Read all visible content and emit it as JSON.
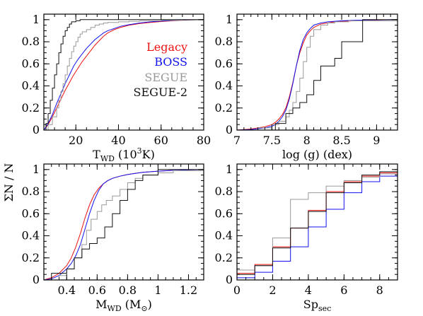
{
  "colors": {
    "legacy": "#ee1111",
    "boss": "#1111ee",
    "segue": "#999999",
    "segue2": "#111111"
  },
  "shared_ylabel": "ΣN / N",
  "chart_data": [
    {
      "id": "teff",
      "type": "line",
      "xlabel_main": "T",
      "xlabel_sub": "WD",
      "xlabel_unit_pre": " (10",
      "xlabel_unit_sup": "3",
      "xlabel_unit_post": "K)",
      "xlim": [
        5,
        80
      ],
      "ylim": [
        0,
        1.05
      ],
      "xticks": [
        20,
        40,
        60,
        80
      ],
      "xminor": 5,
      "yticks": [
        0,
        0.2,
        0.4,
        0.6,
        0.8,
        1
      ],
      "yminor": 0.05,
      "legend": [
        {
          "key": "legacy",
          "label": "Legacy"
        },
        {
          "key": "boss",
          "label": "BOSS"
        },
        {
          "key": "segue",
          "label": "SEGUE"
        },
        {
          "key": "segue2",
          "label": "SEGUE-2"
        }
      ],
      "series": [
        {
          "key": "legacy",
          "step": false,
          "x": [
            5,
            7,
            9,
            11,
            13,
            15,
            17,
            19,
            21,
            23,
            25,
            27,
            29,
            31,
            33,
            35,
            38,
            41,
            45,
            50,
            55,
            60,
            65,
            70,
            75,
            80
          ],
          "y": [
            0,
            0.05,
            0.12,
            0.2,
            0.28,
            0.36,
            0.43,
            0.5,
            0.56,
            0.62,
            0.67,
            0.72,
            0.77,
            0.81,
            0.85,
            0.88,
            0.91,
            0.93,
            0.95,
            0.965,
            0.975,
            0.983,
            0.99,
            0.995,
            0.998,
            1
          ]
        },
        {
          "key": "boss",
          "step": false,
          "x": [
            5,
            7,
            9,
            11,
            13,
            15,
            17,
            19,
            21,
            23,
            25,
            27,
            29,
            31,
            33,
            35,
            38,
            41,
            45,
            50,
            55,
            60,
            65,
            70,
            75,
            80
          ],
          "y": [
            0,
            0.06,
            0.14,
            0.24,
            0.33,
            0.42,
            0.5,
            0.58,
            0.64,
            0.69,
            0.74,
            0.78,
            0.82,
            0.85,
            0.88,
            0.9,
            0.92,
            0.94,
            0.955,
            0.97,
            0.98,
            0.987,
            0.992,
            0.996,
            0.998,
            1
          ]
        },
        {
          "key": "segue",
          "step": true,
          "x": [
            5,
            7,
            9,
            11,
            12,
            13,
            14,
            15,
            16,
            17,
            18,
            19,
            20,
            21,
            22,
            23,
            25,
            27,
            29,
            31,
            33,
            35,
            40,
            45,
            50,
            60,
            70,
            80
          ],
          "y": [
            0,
            0.05,
            0.12,
            0.2,
            0.27,
            0.35,
            0.42,
            0.5,
            0.58,
            0.65,
            0.71,
            0.76,
            0.8,
            0.84,
            0.87,
            0.89,
            0.91,
            0.93,
            0.95,
            0.96,
            0.97,
            0.975,
            0.98,
            0.985,
            0.99,
            0.995,
            0.998,
            1
          ]
        },
        {
          "key": "segue2",
          "step": true,
          "x": [
            5,
            6,
            7,
            8,
            9,
            10,
            11,
            12,
            13,
            14,
            15,
            16,
            17,
            18,
            20,
            22,
            25,
            30,
            35,
            80
          ],
          "y": [
            0,
            0.06,
            0.15,
            0.27,
            0.38,
            0.5,
            0.6,
            0.7,
            0.78,
            0.85,
            0.9,
            0.93,
            0.96,
            0.98,
            0.99,
            1,
            1,
            1,
            1,
            1
          ]
        }
      ]
    },
    {
      "id": "logg",
      "type": "line",
      "xlabel_main": "log (g) (dex)",
      "xlim": [
        7,
        9.3
      ],
      "ylim": [
        0,
        1.05
      ],
      "xticks": [
        7,
        7.5,
        8,
        8.5,
        9
      ],
      "xminor": 0.1,
      "yticks": [
        0,
        0.2,
        0.4,
        0.6,
        0.8,
        1
      ],
      "yminor": 0.05,
      "series": [
        {
          "key": "legacy",
          "step": false,
          "x": [
            7,
            7.2,
            7.4,
            7.5,
            7.55,
            7.6,
            7.65,
            7.7,
            7.75,
            7.8,
            7.85,
            7.9,
            7.95,
            8,
            8.05,
            8.1,
            8.2,
            8.3,
            8.4,
            8.5,
            8.7,
            9,
            9.3
          ],
          "y": [
            0,
            0.01,
            0.03,
            0.05,
            0.07,
            0.1,
            0.14,
            0.2,
            0.3,
            0.43,
            0.58,
            0.7,
            0.79,
            0.86,
            0.9,
            0.93,
            0.96,
            0.97,
            0.98,
            0.985,
            0.99,
            0.996,
            1
          ]
        },
        {
          "key": "boss",
          "step": false,
          "x": [
            7,
            7.2,
            7.4,
            7.5,
            7.55,
            7.6,
            7.65,
            7.7,
            7.75,
            7.8,
            7.85,
            7.9,
            7.95,
            8,
            8.05,
            8.1,
            8.2,
            8.3,
            8.4,
            8.5,
            8.7,
            9,
            9.3
          ],
          "y": [
            0,
            0.005,
            0.02,
            0.035,
            0.05,
            0.08,
            0.12,
            0.18,
            0.28,
            0.42,
            0.58,
            0.72,
            0.82,
            0.88,
            0.92,
            0.95,
            0.97,
            0.98,
            0.985,
            0.99,
            0.995,
            0.998,
            1
          ]
        },
        {
          "key": "segue",
          "step": true,
          "x": [
            7,
            7.3,
            7.5,
            7.6,
            7.7,
            7.75,
            7.8,
            7.85,
            7.9,
            7.95,
            8,
            8.05,
            8.1,
            8.2,
            8.3,
            8.4,
            8.6,
            9.3
          ],
          "y": [
            0,
            0.02,
            0.05,
            0.08,
            0.12,
            0.18,
            0.25,
            0.35,
            0.47,
            0.62,
            0.75,
            0.85,
            0.91,
            0.95,
            0.97,
            0.98,
            0.99,
            1
          ]
        },
        {
          "key": "segue2",
          "step": true,
          "x": [
            7,
            7.55,
            7.7,
            7.8,
            7.9,
            8,
            8.1,
            8.2,
            8.4,
            8.5,
            8.8,
            9.3
          ],
          "y": [
            0,
            0.06,
            0.15,
            0.2,
            0.25,
            0.32,
            0.45,
            0.58,
            0.65,
            0.8,
            1,
            1
          ]
        }
      ]
    },
    {
      "id": "mass",
      "type": "line",
      "xlabel_main": "M",
      "xlabel_sub": "WD",
      "xlabel_unit_pre": " (M",
      "xlabel_unit_sub": "⊙",
      "xlabel_unit_post": ")",
      "xlim": [
        0.25,
        1.3
      ],
      "ylim": [
        0,
        1.05
      ],
      "xticks": [
        0.4,
        0.6,
        0.8,
        1,
        1.2
      ],
      "xminor": 0.05,
      "yticks": [
        0,
        0.2,
        0.4,
        0.6,
        0.8,
        1
      ],
      "yminor": 0.05,
      "series": [
        {
          "key": "legacy",
          "step": false,
          "x": [
            0.25,
            0.3,
            0.35,
            0.4,
            0.43,
            0.46,
            0.49,
            0.52,
            0.55,
            0.58,
            0.61,
            0.64,
            0.67,
            0.7,
            0.75,
            0.8,
            0.85,
            0.9,
            1,
            1.1,
            1.2,
            1.3
          ],
          "y": [
            0,
            0.02,
            0.06,
            0.13,
            0.2,
            0.3,
            0.42,
            0.56,
            0.68,
            0.77,
            0.83,
            0.87,
            0.9,
            0.92,
            0.94,
            0.955,
            0.965,
            0.975,
            0.985,
            0.992,
            0.997,
            1
          ]
        },
        {
          "key": "boss",
          "step": false,
          "x": [
            0.25,
            0.3,
            0.35,
            0.4,
            0.43,
            0.46,
            0.49,
            0.52,
            0.55,
            0.58,
            0.61,
            0.64,
            0.67,
            0.7,
            0.75,
            0.8,
            0.85,
            0.9,
            1,
            1.1,
            1.2,
            1.3
          ],
          "y": [
            0,
            0.01,
            0.04,
            0.1,
            0.15,
            0.22,
            0.32,
            0.46,
            0.6,
            0.72,
            0.81,
            0.87,
            0.9,
            0.92,
            0.94,
            0.955,
            0.965,
            0.975,
            0.985,
            0.992,
            0.997,
            1
          ]
        },
        {
          "key": "segue",
          "step": true,
          "x": [
            0.25,
            0.35,
            0.4,
            0.45,
            0.5,
            0.53,
            0.56,
            0.6,
            0.63,
            0.66,
            0.7,
            0.75,
            0.8,
            0.85,
            0.9,
            1,
            1.1,
            1.3
          ],
          "y": [
            0,
            0.04,
            0.1,
            0.2,
            0.32,
            0.45,
            0.55,
            0.62,
            0.68,
            0.72,
            0.76,
            0.82,
            0.88,
            0.92,
            0.95,
            0.97,
            0.99,
            1
          ]
        },
        {
          "key": "segue2",
          "step": true,
          "x": [
            0.25,
            0.3,
            0.4,
            0.45,
            0.5,
            0.55,
            0.6,
            0.65,
            0.7,
            0.75,
            0.8,
            0.85,
            0.9,
            1,
            1.3
          ],
          "y": [
            0,
            0.06,
            0.1,
            0.2,
            0.28,
            0.33,
            0.38,
            0.48,
            0.6,
            0.72,
            0.82,
            0.9,
            0.95,
            1,
            1
          ]
        }
      ]
    },
    {
      "id": "sp",
      "type": "line",
      "xlabel_main": "Sp",
      "xlabel_sub": "sec",
      "xlim": [
        0,
        9
      ],
      "ylim": [
        0,
        1.05
      ],
      "xticks": [
        0,
        2,
        4,
        6,
        8
      ],
      "xminor": 0.5,
      "yticks": [
        0,
        0.2,
        0.4,
        0.6,
        0.8,
        1
      ],
      "yminor": 0.05,
      "series": [
        {
          "key": "legacy",
          "step": true,
          "x": [
            0,
            1,
            2,
            3,
            4,
            5,
            6,
            7,
            8,
            9
          ],
          "y": [
            0.06,
            0.14,
            0.3,
            0.47,
            0.63,
            0.8,
            0.89,
            0.94,
            0.97,
            0.98
          ]
        },
        {
          "key": "boss",
          "step": true,
          "x": [
            0,
            1,
            2,
            3,
            4,
            5,
            6,
            7,
            8,
            9
          ],
          "y": [
            0.02,
            0.07,
            0.17,
            0.3,
            0.48,
            0.64,
            0.79,
            0.89,
            0.94,
            0.96
          ]
        },
        {
          "key": "segue",
          "step": true,
          "x": [
            0,
            1,
            2,
            3,
            4,
            5,
            6,
            7,
            8,
            9
          ],
          "y": [
            0.09,
            0.13,
            0.38,
            0.73,
            0.79,
            0.85,
            0.9,
            0.93,
            0.96,
            0.99
          ]
        },
        {
          "key": "segue2",
          "step": true,
          "x": [
            0,
            1,
            2,
            3,
            4,
            5,
            6,
            7,
            8,
            9
          ],
          "y": [
            0.05,
            0.13,
            0.29,
            0.47,
            0.62,
            0.79,
            0.88,
            0.95,
            0.98,
            1
          ]
        }
      ]
    }
  ]
}
